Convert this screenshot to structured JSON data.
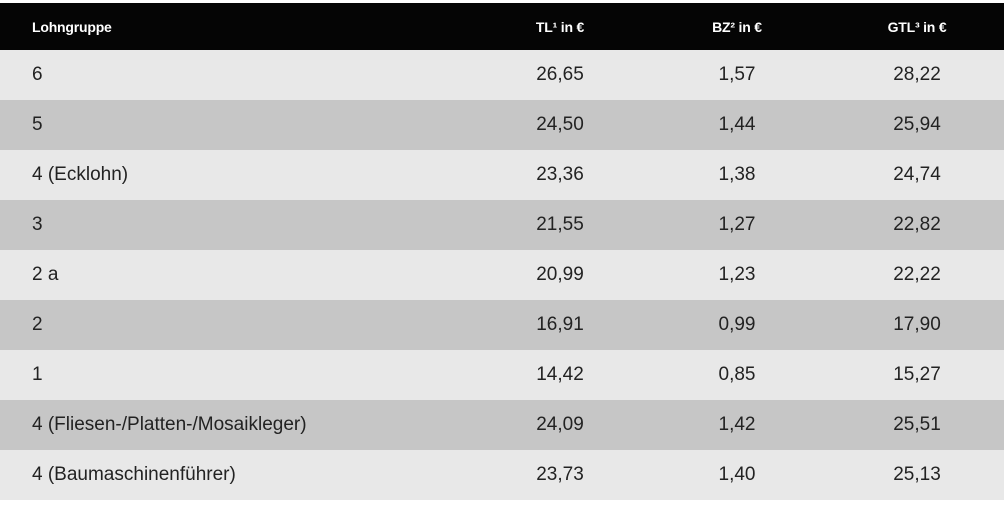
{
  "table": {
    "headers": {
      "group": "Lohngruppe",
      "tl": "TL¹ in €",
      "bz": "BZ² in €",
      "gtl": "GTL³ in €"
    },
    "rows": [
      {
        "group": "6",
        "tl": "26,65",
        "bz": "1,57",
        "gtl": "28,22"
      },
      {
        "group": "5",
        "tl": "24,50",
        "bz": "1,44",
        "gtl": "25,94"
      },
      {
        "group": "4 (Ecklohn)",
        "tl": "23,36",
        "bz": "1,38",
        "gtl": "24,74"
      },
      {
        "group": "3",
        "tl": "21,55",
        "bz": "1,27",
        "gtl": "22,82"
      },
      {
        "group": "2 a",
        "tl": "20,99",
        "bz": "1,23",
        "gtl": "22,22"
      },
      {
        "group": "2",
        "tl": "16,91",
        "bz": "0,99",
        "gtl": "17,90"
      },
      {
        "group": "1",
        "tl": "14,42",
        "bz": "0,85",
        "gtl": "15,27"
      },
      {
        "group": "4 (Fliesen-/Platten-/Mosaikleger)",
        "tl": "24,09",
        "bz": "1,42",
        "gtl": "25,51"
      },
      {
        "group": "4 (Baumaschinenführer)",
        "tl": "23,73",
        "bz": "1,40",
        "gtl": "25,13"
      }
    ]
  }
}
